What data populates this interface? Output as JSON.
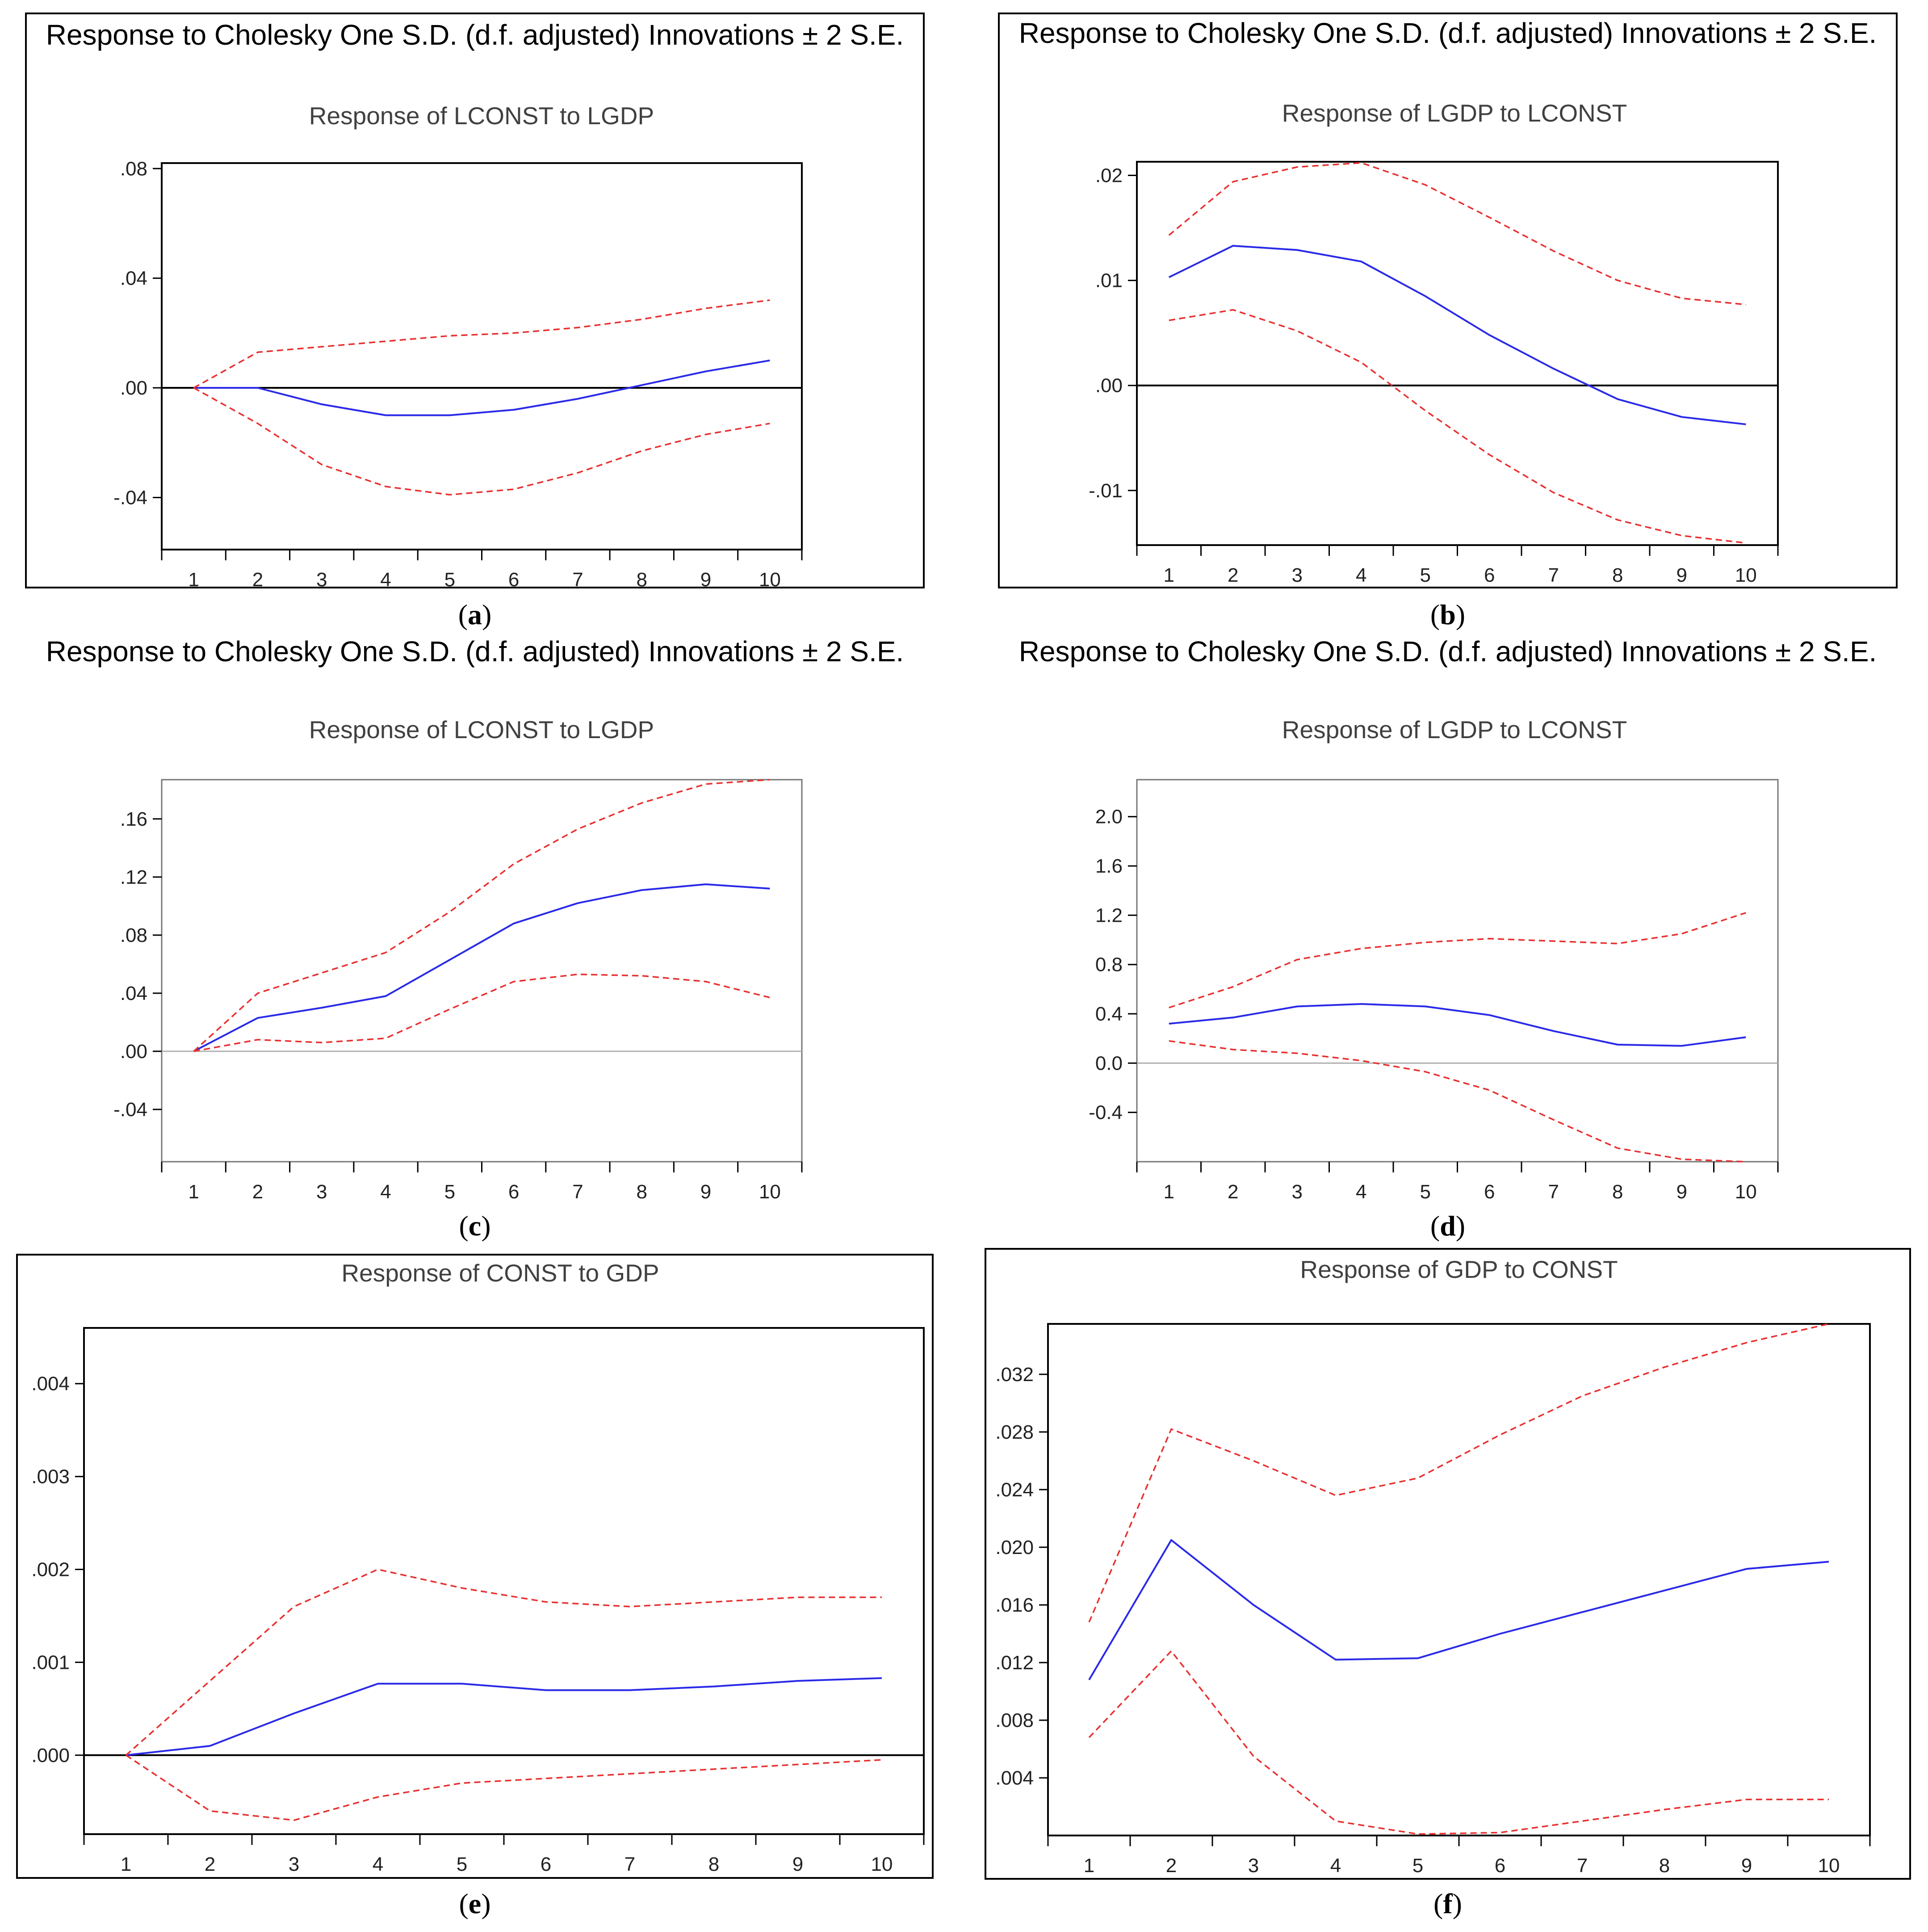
{
  "figure": {
    "background": "#ffffff"
  },
  "colors": {
    "response": "#2a2ae8",
    "band": "#e83030",
    "axis": "#000000"
  },
  "chart_data": [
    {
      "type": "line",
      "panel": "a",
      "heading": "Response to Cholesky One S.D. (d.f. adjusted) Innovations ± 2 S.E.",
      "title": "Response of LCONST to LGDP",
      "caption_label": "a",
      "x": [
        1,
        2,
        3,
        4,
        5,
        6,
        7,
        8,
        9,
        10
      ],
      "xlim": [
        0.5,
        10.5
      ],
      "ylim": [
        -0.059,
        0.082
      ],
      "yticks": [
        -0.04,
        0.0,
        0.04,
        0.08
      ],
      "ytick_labels": [
        "-.04",
        ".00",
        ".04",
        ".08"
      ],
      "framed": true,
      "zero_line": "strong",
      "series": [
        {
          "role": "response",
          "values": [
            0.0,
            0.0,
            -0.006,
            -0.01,
            -0.01,
            -0.008,
            -0.004,
            0.001,
            0.006,
            0.01
          ]
        },
        {
          "role": "upper",
          "values": [
            0.0,
            0.013,
            0.015,
            0.017,
            0.019,
            0.02,
            0.022,
            0.025,
            0.029,
            0.032
          ]
        },
        {
          "role": "lower",
          "values": [
            0.0,
            -0.013,
            -0.028,
            -0.036,
            -0.039,
            -0.037,
            -0.031,
            -0.023,
            -0.017,
            -0.013
          ]
        }
      ]
    },
    {
      "type": "line",
      "panel": "b",
      "heading": "Response to Cholesky One S.D. (d.f. adjusted) Innovations ± 2 S.E.",
      "title": "Response of LGDP to LCONST",
      "caption_label": "b",
      "x": [
        1,
        2,
        3,
        4,
        5,
        6,
        7,
        8,
        9,
        10
      ],
      "xlim": [
        0.5,
        10.5
      ],
      "ylim": [
        -0.0152,
        0.0213
      ],
      "yticks": [
        -0.01,
        0.0,
        0.01,
        0.02
      ],
      "ytick_labels": [
        "-.01",
        ".00",
        ".01",
        ".02"
      ],
      "framed": true,
      "zero_line": "strong",
      "series": [
        {
          "role": "response",
          "values": [
            0.0103,
            0.0133,
            0.0129,
            0.0118,
            0.0085,
            0.0048,
            0.0016,
            -0.0013,
            -0.003,
            -0.0037
          ]
        },
        {
          "role": "upper",
          "values": [
            0.0143,
            0.0194,
            0.0208,
            0.0212,
            0.0191,
            0.016,
            0.0128,
            0.01,
            0.0083,
            0.0077
          ]
        },
        {
          "role": "lower",
          "values": [
            0.0062,
            0.0072,
            0.0052,
            0.0022,
            -0.0024,
            -0.0066,
            -0.0102,
            -0.0128,
            -0.0143,
            -0.015
          ]
        }
      ]
    },
    {
      "type": "line",
      "panel": "c",
      "heading": "Response to Cholesky One S.D. (d.f. adjusted) Innovations ± 2 S.E.",
      "title": "Response of LCONST to LGDP",
      "caption_label": "c",
      "x": [
        1,
        2,
        3,
        4,
        5,
        6,
        7,
        8,
        9,
        10
      ],
      "xlim": [
        0.5,
        10.5
      ],
      "ylim": [
        -0.076,
        0.187
      ],
      "yticks": [
        -0.04,
        0.0,
        0.04,
        0.08,
        0.12,
        0.16
      ],
      "ytick_labels": [
        "-.04",
        ".00",
        ".04",
        ".08",
        ".12",
        ".16"
      ],
      "framed": false,
      "zero_line": "light",
      "series": [
        {
          "role": "response",
          "values": [
            0.0,
            0.023,
            0.03,
            0.038,
            0.063,
            0.088,
            0.102,
            0.111,
            0.115,
            0.112
          ]
        },
        {
          "role": "upper",
          "values": [
            0.0,
            0.04,
            0.054,
            0.068,
            0.096,
            0.129,
            0.153,
            0.171,
            0.184,
            0.187
          ]
        },
        {
          "role": "lower",
          "values": [
            0.0,
            0.008,
            0.006,
            0.009,
            0.029,
            0.048,
            0.053,
            0.052,
            0.048,
            0.037
          ]
        }
      ]
    },
    {
      "type": "line",
      "panel": "d",
      "heading": "Response to Cholesky One S.D. (d.f. adjusted) Innovations ± 2 S.E.",
      "title": "Response of LGDP to LCONST",
      "caption_label": "d",
      "x": [
        1,
        2,
        3,
        4,
        5,
        6,
        7,
        8,
        9,
        10
      ],
      "xlim": [
        0.5,
        10.5
      ],
      "ylim": [
        -0.8,
        2.3
      ],
      "yticks": [
        -0.4,
        0.0,
        0.4,
        0.8,
        1.2,
        1.6,
        2.0
      ],
      "ytick_labels": [
        "-0.4",
        "0.0",
        "0.4",
        "0.8",
        "1.2",
        "1.6",
        "2.0"
      ],
      "framed": false,
      "zero_line": "light",
      "series": [
        {
          "role": "response",
          "values": [
            0.32,
            0.37,
            0.46,
            0.48,
            0.46,
            0.39,
            0.26,
            0.15,
            0.14,
            0.21
          ]
        },
        {
          "role": "upper",
          "values": [
            0.45,
            0.62,
            0.84,
            0.93,
            0.98,
            1.01,
            0.99,
            0.97,
            1.05,
            1.22
          ]
        },
        {
          "role": "lower",
          "values": [
            0.18,
            0.11,
            0.08,
            0.02,
            -0.07,
            -0.22,
            -0.46,
            -0.69,
            -0.78,
            -0.8
          ]
        }
      ]
    },
    {
      "type": "line",
      "panel": "e",
      "heading": "",
      "title": "Response of CONST to GDP",
      "caption_label": "e",
      "x": [
        1,
        2,
        3,
        4,
        5,
        6,
        7,
        8,
        9,
        10
      ],
      "xlim": [
        0.5,
        10.5
      ],
      "ylim": [
        -0.00085,
        0.0046
      ],
      "yticks": [
        0.0,
        0.001,
        0.002,
        0.003,
        0.004
      ],
      "ytick_labels": [
        ".000",
        ".001",
        ".002",
        ".003",
        ".004"
      ],
      "framed": true,
      "zero_line": "strong",
      "series": [
        {
          "role": "response",
          "values": [
            0.0,
            0.0001,
            0.00045,
            0.00077,
            0.00077,
            0.0007,
            0.0007,
            0.00074,
            0.0008,
            0.00083
          ]
        },
        {
          "role": "upper",
          "values": [
            0.0,
            0.0008,
            0.0016,
            0.002,
            0.0018,
            0.00165,
            0.0016,
            0.00165,
            0.0017,
            0.0017
          ]
        },
        {
          "role": "lower",
          "values": [
            0.0,
            -0.0006,
            -0.0007,
            -0.00045,
            -0.0003,
            -0.00025,
            -0.0002,
            -0.00015,
            -0.0001,
            -5e-05
          ]
        }
      ]
    },
    {
      "type": "line",
      "panel": "f",
      "heading": "",
      "title": "Response of GDP to CONST",
      "caption_label": "f",
      "x": [
        1,
        2,
        3,
        4,
        5,
        6,
        7,
        8,
        9,
        10
      ],
      "xlim": [
        0.5,
        10.5
      ],
      "ylim": [
        0.0,
        0.0355
      ],
      "yticks": [
        0.004,
        0.008,
        0.012,
        0.016,
        0.02,
        0.024,
        0.028,
        0.032
      ],
      "ytick_labels": [
        ".004",
        ".008",
        ".012",
        ".016",
        ".020",
        ".024",
        ".028",
        ".032"
      ],
      "framed": true,
      "zero_line": "none",
      "series": [
        {
          "role": "response",
          "values": [
            0.0108,
            0.0205,
            0.016,
            0.0122,
            0.0123,
            0.014,
            0.0155,
            0.017,
            0.0185,
            0.019
          ]
        },
        {
          "role": "upper",
          "values": [
            0.0148,
            0.0282,
            0.026,
            0.0236,
            0.0248,
            0.0278,
            0.0305,
            0.0325,
            0.0342,
            0.0355
          ]
        },
        {
          "role": "lower",
          "values": [
            0.0068,
            0.0128,
            0.0055,
            0.001,
            0.0001,
            0.0002,
            0.001,
            0.0018,
            0.0025,
            0.0025
          ]
        }
      ]
    }
  ]
}
